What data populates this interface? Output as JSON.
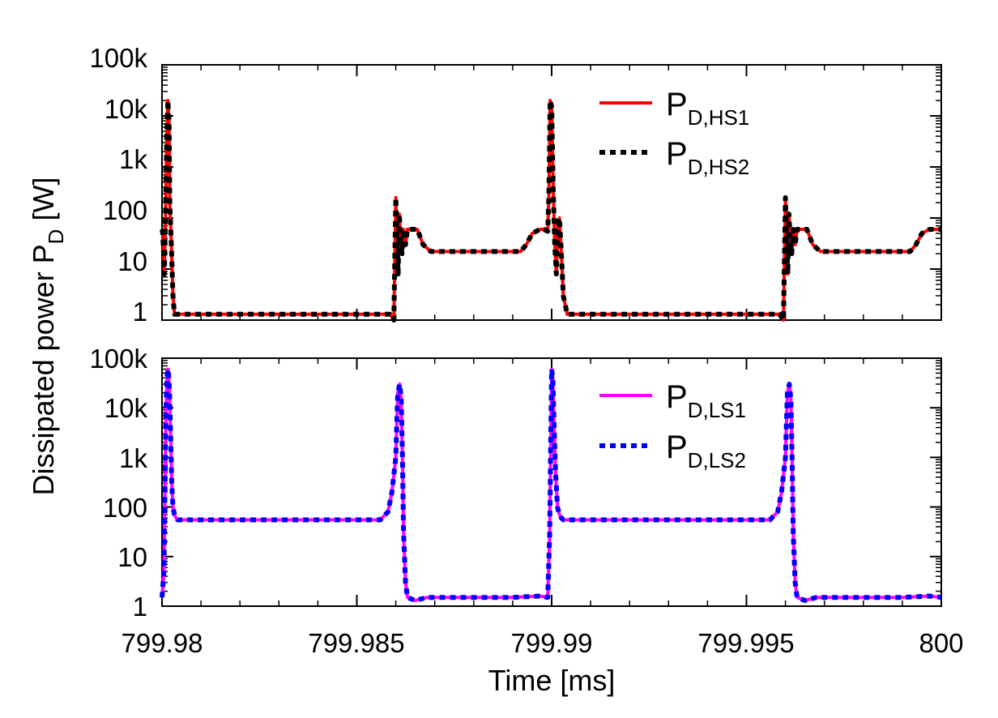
{
  "chart_data": [
    {
      "panel": "top",
      "type": "line",
      "yscale": "log",
      "xlim": [
        799.98,
        800.0
      ],
      "ylim": [
        1,
        100000
      ],
      "yticks": [
        1,
        10,
        100,
        1000,
        10000,
        100000
      ],
      "ytick_labels": [
        "1",
        "10",
        "100",
        "1k",
        "10k",
        "100k"
      ],
      "legend_position": "top-right",
      "series": [
        {
          "name": "P_D,HS1",
          "legend_main": "P",
          "legend_sub": "D,HS1",
          "color": "#ff0000",
          "style": "solid",
          "x": [
            799.98,
            799.98002,
            799.98006,
            799.9801,
            799.98012,
            799.98015,
            799.98018,
            799.9802,
            799.98024,
            799.98028,
            799.98032,
            799.9804,
            799.9806,
            799.981,
            799.982,
            799.983,
            799.984,
            799.985,
            799.98585,
            799.98595,
            799.986,
            799.98603,
            799.98606,
            799.98609,
            799.98612,
            799.98616,
            799.9862,
            799.98625,
            799.9863,
            799.9864,
            799.98655,
            799.9867,
            799.9869,
            799.9872,
            799.9878,
            799.9885,
            799.989,
            799.9892,
            799.98935,
            799.9895,
            799.9897,
            799.9898,
            799.9899,
            799.98993,
            799.98996,
            799.99,
            799.99004,
            799.99008,
            799.99012,
            799.99016,
            799.9902,
            799.99025,
            799.9903,
            799.9904,
            799.9906,
            799.991,
            799.992,
            799.993,
            799.994,
            799.995,
            799.99585,
            799.99595,
            799.996,
            799.99603,
            799.99606,
            799.99609,
            799.99612,
            799.99616,
            799.9962,
            799.99625,
            799.9963,
            799.9964,
            799.99655,
            799.9967,
            799.9969,
            799.9972,
            799.9978,
            799.9985,
            799.999,
            799.9992,
            799.99935,
            799.9995,
            799.9997,
            800.0
          ],
          "y": [
            60,
            50,
            8,
            300,
            4000,
            20000,
            8000,
            200,
            30,
            3,
            1.3,
            1.3,
            1.3,
            1.3,
            1.3,
            1.3,
            1.3,
            1.3,
            1.3,
            1.0,
            250,
            40,
            8,
            120,
            40,
            20,
            60,
            30,
            60,
            60,
            60,
            30,
            22,
            22,
            22,
            22,
            22,
            22,
            30,
            50,
            60,
            60,
            55,
            300,
            20000,
            15000,
            400,
            30,
            8,
            80,
            100,
            20,
            3,
            1.3,
            1.3,
            1.3,
            1.3,
            1.3,
            1.3,
            1.3,
            1.3,
            1.0,
            250,
            40,
            8,
            120,
            40,
            20,
            60,
            30,
            60,
            60,
            60,
            30,
            22,
            22,
            22,
            22,
            22,
            22,
            30,
            50,
            60,
            60
          ]
        },
        {
          "name": "P_D,HS2",
          "legend_main": "P",
          "legend_sub": "D,HS2",
          "color": "#000000",
          "style": "dotted",
          "x": [
            799.98,
            799.98002,
            799.98006,
            799.9801,
            799.98012,
            799.98015,
            799.98018,
            799.9802,
            799.98024,
            799.98028,
            799.98032,
            799.9804,
            799.9806,
            799.981,
            799.982,
            799.983,
            799.984,
            799.985,
            799.98585,
            799.98595,
            799.986,
            799.98603,
            799.98606,
            799.98609,
            799.98612,
            799.98616,
            799.9862,
            799.98625,
            799.9863,
            799.9864,
            799.98655,
            799.9867,
            799.9869,
            799.9872,
            799.9878,
            799.9885,
            799.989,
            799.9892,
            799.98935,
            799.9895,
            799.9897,
            799.9898,
            799.9899,
            799.98993,
            799.98996,
            799.99,
            799.99004,
            799.99008,
            799.99012,
            799.99016,
            799.9902,
            799.99025,
            799.9903,
            799.9904,
            799.9906,
            799.991,
            799.992,
            799.993,
            799.994,
            799.995,
            799.99585,
            799.99595,
            799.996,
            799.99603,
            799.99606,
            799.99609,
            799.99612,
            799.99616,
            799.9962,
            799.99625,
            799.9963,
            799.9964,
            799.99655,
            799.9967,
            799.9969,
            799.9972,
            799.9978,
            799.9985,
            799.999,
            799.9992,
            799.99935,
            799.9995,
            799.9997,
            800.0
          ],
          "y": [
            60,
            50,
            8,
            300,
            4000,
            20000,
            8000,
            200,
            30,
            3,
            1.3,
            1.3,
            1.3,
            1.3,
            1.3,
            1.3,
            1.3,
            1.3,
            1.3,
            1.0,
            250,
            40,
            8,
            120,
            40,
            20,
            60,
            30,
            60,
            60,
            60,
            30,
            22,
            22,
            22,
            22,
            22,
            22,
            30,
            50,
            60,
            60,
            55,
            300,
            20000,
            15000,
            400,
            30,
            8,
            80,
            100,
            20,
            3,
            1.3,
            1.3,
            1.3,
            1.3,
            1.3,
            1.3,
            1.3,
            1.3,
            1.0,
            250,
            40,
            8,
            120,
            40,
            20,
            60,
            30,
            60,
            60,
            60,
            30,
            22,
            22,
            22,
            22,
            22,
            22,
            30,
            50,
            60,
            60
          ]
        }
      ]
    },
    {
      "panel": "bottom",
      "type": "line",
      "yscale": "log",
      "xlim": [
        799.98,
        800.0
      ],
      "ylim": [
        1,
        100000
      ],
      "yticks": [
        1,
        10,
        100,
        1000,
        10000,
        100000
      ],
      "ytick_labels": [
        "1",
        "10",
        "100",
        "1k",
        "10k",
        "100k"
      ],
      "xticks": [
        799.98,
        799.985,
        799.99,
        799.995,
        800.0
      ],
      "xtick_labels": [
        "799.98",
        "799.985",
        "799.99",
        "799.995",
        "800"
      ],
      "xlabel": "Time [ms]",
      "legend_position": "top-right",
      "series": [
        {
          "name": "P_D,LS1",
          "legend_main": "P",
          "legend_sub": "D,LS1",
          "color": "#ff00ff",
          "style": "solid",
          "x": [
            799.98,
            799.98005,
            799.98008,
            799.9801,
            799.98013,
            799.98016,
            799.98019,
            799.98022,
            799.98025,
            799.98028,
            799.98032,
            799.98036,
            799.9804,
            799.9805,
            799.9807,
            799.981,
            799.983,
            799.985,
            799.9856,
            799.9858,
            799.9859,
            799.986,
            799.98605,
            799.9861,
            799.98614,
            799.98617,
            799.9862,
            799.98625,
            799.9863,
            799.9865,
            799.9868,
            799.988,
            799.989,
            799.9897,
            799.9899,
            799.98995,
            799.98998,
            799.99,
            799.99003,
            799.99006,
            799.9901,
            799.99015,
            799.9902,
            799.99025,
            799.9903,
            799.9904,
            799.9906,
            799.991,
            799.993,
            799.995,
            799.9956,
            799.9958,
            799.9959,
            799.996,
            799.99605,
            799.9961,
            799.99614,
            799.99617,
            799.9962,
            799.99625,
            799.9963,
            799.9965,
            799.9968,
            799.998,
            799.999,
            799.9997,
            800.0
          ],
          "y": [
            1.5,
            5,
            300,
            8000,
            45000,
            60000,
            25000,
            3000,
            300,
            100,
            70,
            60,
            55,
            55,
            55,
            55,
            55,
            55,
            55,
            80,
            200,
            1000,
            20000,
            30000,
            15000,
            1000,
            30,
            3,
            1.5,
            1.3,
            1.5,
            1.5,
            1.5,
            1.6,
            1.5,
            30,
            3000,
            60000,
            40000,
            5000,
            500,
            100,
            70,
            60,
            55,
            55,
            55,
            55,
            55,
            55,
            55,
            80,
            200,
            1000,
            20000,
            30000,
            15000,
            1000,
            30,
            3,
            1.5,
            1.3,
            1.5,
            1.5,
            1.5,
            1.6,
            1.5
          ]
        },
        {
          "name": "P_D,LS2",
          "legend_main": "P",
          "legend_sub": "D,LS2",
          "color": "#0000ff",
          "style": "dotted",
          "x": [
            799.98,
            799.98005,
            799.98008,
            799.9801,
            799.98013,
            799.98016,
            799.98019,
            799.98022,
            799.98025,
            799.98028,
            799.98032,
            799.98036,
            799.9804,
            799.9805,
            799.9807,
            799.981,
            799.983,
            799.985,
            799.9856,
            799.9858,
            799.9859,
            799.986,
            799.98605,
            799.9861,
            799.98614,
            799.98617,
            799.9862,
            799.98625,
            799.9863,
            799.9865,
            799.9868,
            799.988,
            799.989,
            799.9897,
            799.9899,
            799.98995,
            799.98998,
            799.99,
            799.99003,
            799.99006,
            799.9901,
            799.99015,
            799.9902,
            799.99025,
            799.9903,
            799.9904,
            799.9906,
            799.991,
            799.993,
            799.995,
            799.9956,
            799.9958,
            799.9959,
            799.996,
            799.99605,
            799.9961,
            799.99614,
            799.99617,
            799.9962,
            799.99625,
            799.9963,
            799.9965,
            799.9968,
            799.998,
            799.999,
            799.9997,
            800.0
          ],
          "y": [
            1.5,
            5,
            300,
            8000,
            45000,
            60000,
            25000,
            3000,
            300,
            100,
            70,
            60,
            55,
            55,
            55,
            55,
            55,
            55,
            55,
            80,
            200,
            1000,
            20000,
            30000,
            15000,
            1000,
            30,
            3,
            1.5,
            1.3,
            1.5,
            1.5,
            1.5,
            1.6,
            1.5,
            30,
            3000,
            60000,
            40000,
            5000,
            500,
            100,
            70,
            60,
            55,
            55,
            55,
            55,
            55,
            55,
            55,
            80,
            200,
            1000,
            20000,
            30000,
            15000,
            1000,
            30,
            3,
            1.5,
            1.3,
            1.5,
            1.5,
            1.5,
            1.6,
            1.5
          ]
        }
      ]
    }
  ],
  "ylabel_main": "Dissipated power P",
  "ylabel_sub": "D",
  "ylabel_unit": " [W]"
}
